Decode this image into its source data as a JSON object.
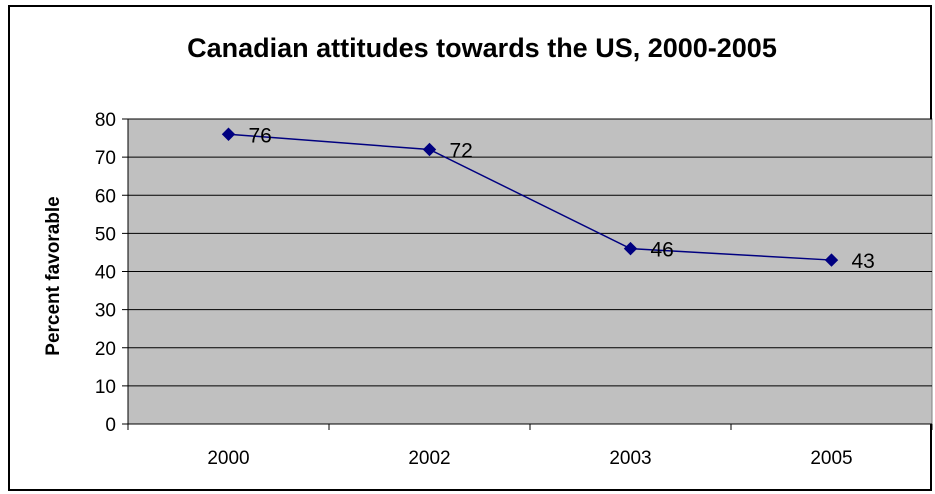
{
  "chart_data": {
    "type": "line",
    "title": "Canadian attitudes towards the US, 2000-2005",
    "xlabel": "",
    "ylabel": "Percent favorable",
    "categories": [
      "2000",
      "2002",
      "2003",
      "2005"
    ],
    "series": [
      {
        "values": [
          76,
          72,
          46,
          43
        ],
        "data_labels": [
          "76",
          "72",
          "46",
          "43"
        ]
      }
    ],
    "ylim": [
      0,
      80
    ],
    "yticks": [
      "0",
      "10",
      "20",
      "30",
      "40",
      "50",
      "60",
      "70",
      "80"
    ],
    "grid": true,
    "legend": "none",
    "colors": {
      "plot_background": "#c0c0c0",
      "line": "#000080",
      "marker": "#000080",
      "gridline": "#000000"
    }
  }
}
